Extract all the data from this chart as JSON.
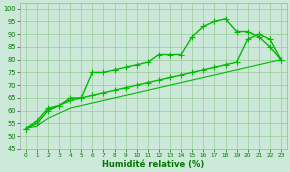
{
  "xlabel": "Humidité relative (%)",
  "bg_color": "#cce8d8",
  "line_color": "#00bb00",
  "grid_color": "#99cc99",
  "axis_color": "#007700",
  "tick_color": "#007700",
  "xlim": [
    -0.5,
    23.5
  ],
  "ylim": [
    45,
    102
  ],
  "xticks": [
    0,
    1,
    2,
    3,
    4,
    5,
    6,
    7,
    8,
    9,
    10,
    11,
    12,
    13,
    14,
    15,
    16,
    17,
    18,
    19,
    20,
    21,
    22,
    23
  ],
  "yticks": [
    45,
    50,
    55,
    60,
    65,
    70,
    75,
    80,
    85,
    90,
    95,
    100
  ],
  "series": [
    {
      "x": [
        0,
        1,
        2,
        3,
        4,
        5,
        6,
        7,
        8,
        9,
        10,
        11,
        12,
        13,
        14,
        15,
        16,
        17,
        18,
        19,
        20,
        21,
        22,
        23
      ],
      "y": [
        53,
        56,
        61,
        62,
        65,
        65,
        75,
        75,
        76,
        77,
        78,
        79,
        82,
        82,
        82,
        89,
        93,
        95,
        96,
        91,
        91,
        89,
        85,
        80
      ],
      "linestyle": "-",
      "marker": "+",
      "linewidth": 1.0,
      "markersize": 4
    },
    {
      "x": [
        0,
        1,
        2,
        3,
        4,
        5,
        6,
        7,
        8,
        9,
        10,
        11,
        12,
        13,
        14,
        15,
        16,
        17,
        18,
        19,
        20,
        21,
        22,
        23
      ],
      "y": [
        53,
        55,
        60,
        62,
        64,
        65,
        66,
        67,
        68,
        69,
        70,
        71,
        72,
        73,
        74,
        75,
        76,
        77,
        78,
        79,
        88,
        90,
        88,
        80
      ],
      "linestyle": "-",
      "marker": "+",
      "linewidth": 1.0,
      "markersize": 4
    },
    {
      "x": [
        0,
        1,
        2,
        3,
        4,
        5,
        6,
        7,
        8,
        9,
        10,
        11,
        12,
        13,
        14,
        15,
        16,
        17,
        18,
        19,
        20,
        21,
        22,
        23
      ],
      "y": [
        53,
        54,
        57,
        59,
        61,
        62,
        63,
        64,
        65,
        66,
        67,
        68,
        69,
        70,
        71,
        72,
        73,
        74,
        75,
        76,
        77,
        78,
        79,
        80
      ],
      "linestyle": "-",
      "marker": null,
      "linewidth": 0.8,
      "markersize": 0
    }
  ]
}
